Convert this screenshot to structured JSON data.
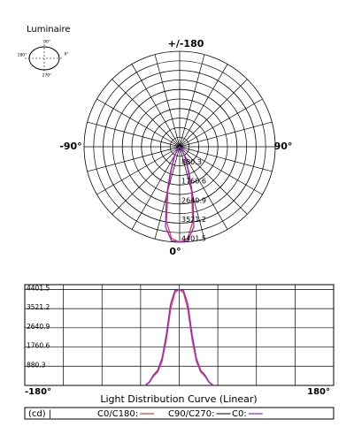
{
  "header": {
    "title": "Luminaire",
    "icon_labels": {
      "top": "90°",
      "left": "180°",
      "right": "0°",
      "bottom": "270°"
    }
  },
  "chart_data": [
    {
      "type": "polar",
      "x": [
        -40,
        -35,
        -30,
        -25,
        -20,
        -15,
        -10,
        -5,
        0,
        5,
        10,
        15,
        20,
        25,
        30,
        35,
        40
      ],
      "series": [
        {
          "color": "#e83a3a",
          "values": [
            0,
            120,
            420,
            620,
            1100,
            2100,
            3500,
            4250,
            4401.5,
            4250,
            3500,
            2100,
            1100,
            620,
            420,
            120,
            0
          ]
        },
        {
          "color": "#8a2be2",
          "values": [
            0,
            150,
            480,
            700,
            1250,
            2350,
            3750,
            4350,
            4401.5,
            4350,
            3750,
            2350,
            1250,
            700,
            480,
            150,
            0
          ]
        }
      ],
      "rlim": [
        0,
        4401.5
      ],
      "rticks": [
        880.3,
        1760.6,
        2640.9,
        3521.2,
        4401.5
      ],
      "angle_ticks": [
        {
          "value": 180,
          "label": "+/-180"
        },
        {
          "value": -90,
          "label": "-90°"
        },
        {
          "value": 90,
          "label": "90°"
        },
        {
          "value": 0,
          "label": "0°"
        }
      ],
      "grid": true
    },
    {
      "type": "line",
      "title": "Light Distribution Curve (Linear)",
      "unit": "(cd) |",
      "x": [
        -40,
        -35,
        -30,
        -25,
        -20,
        -15,
        -10,
        -5,
        0,
        5,
        10,
        15,
        20,
        25,
        30,
        35,
        40
      ],
      "series": [
        {
          "name": "C0/C180:",
          "color": "#e83a3a",
          "values": [
            0,
            120,
            420,
            620,
            1100,
            2100,
            3500,
            4250,
            4401.5,
            4250,
            3500,
            2100,
            1100,
            620,
            420,
            120,
            0
          ]
        },
        {
          "name": "C90/C270:",
          "color": "#333333",
          "values": [
            null,
            null,
            null,
            null,
            null,
            null,
            null,
            null,
            null,
            null,
            null,
            null,
            null,
            null,
            null,
            null,
            null
          ]
        },
        {
          "name": "C0:",
          "color": "#8a2be2",
          "values": [
            0,
            150,
            480,
            700,
            1250,
            2350,
            3750,
            4350,
            4401.5,
            4350,
            3750,
            2350,
            1250,
            700,
            480,
            150,
            0
          ]
        }
      ],
      "xlim": [
        -180,
        180
      ],
      "xticks": [
        {
          "value": -180,
          "label": "-180°"
        },
        {
          "value": 180,
          "label": "180°"
        }
      ],
      "ylim": [
        0,
        4620
      ],
      "yticks": [
        880.3,
        1760.6,
        2640.9,
        3521.2,
        4401.5
      ],
      "grid": true
    }
  ]
}
